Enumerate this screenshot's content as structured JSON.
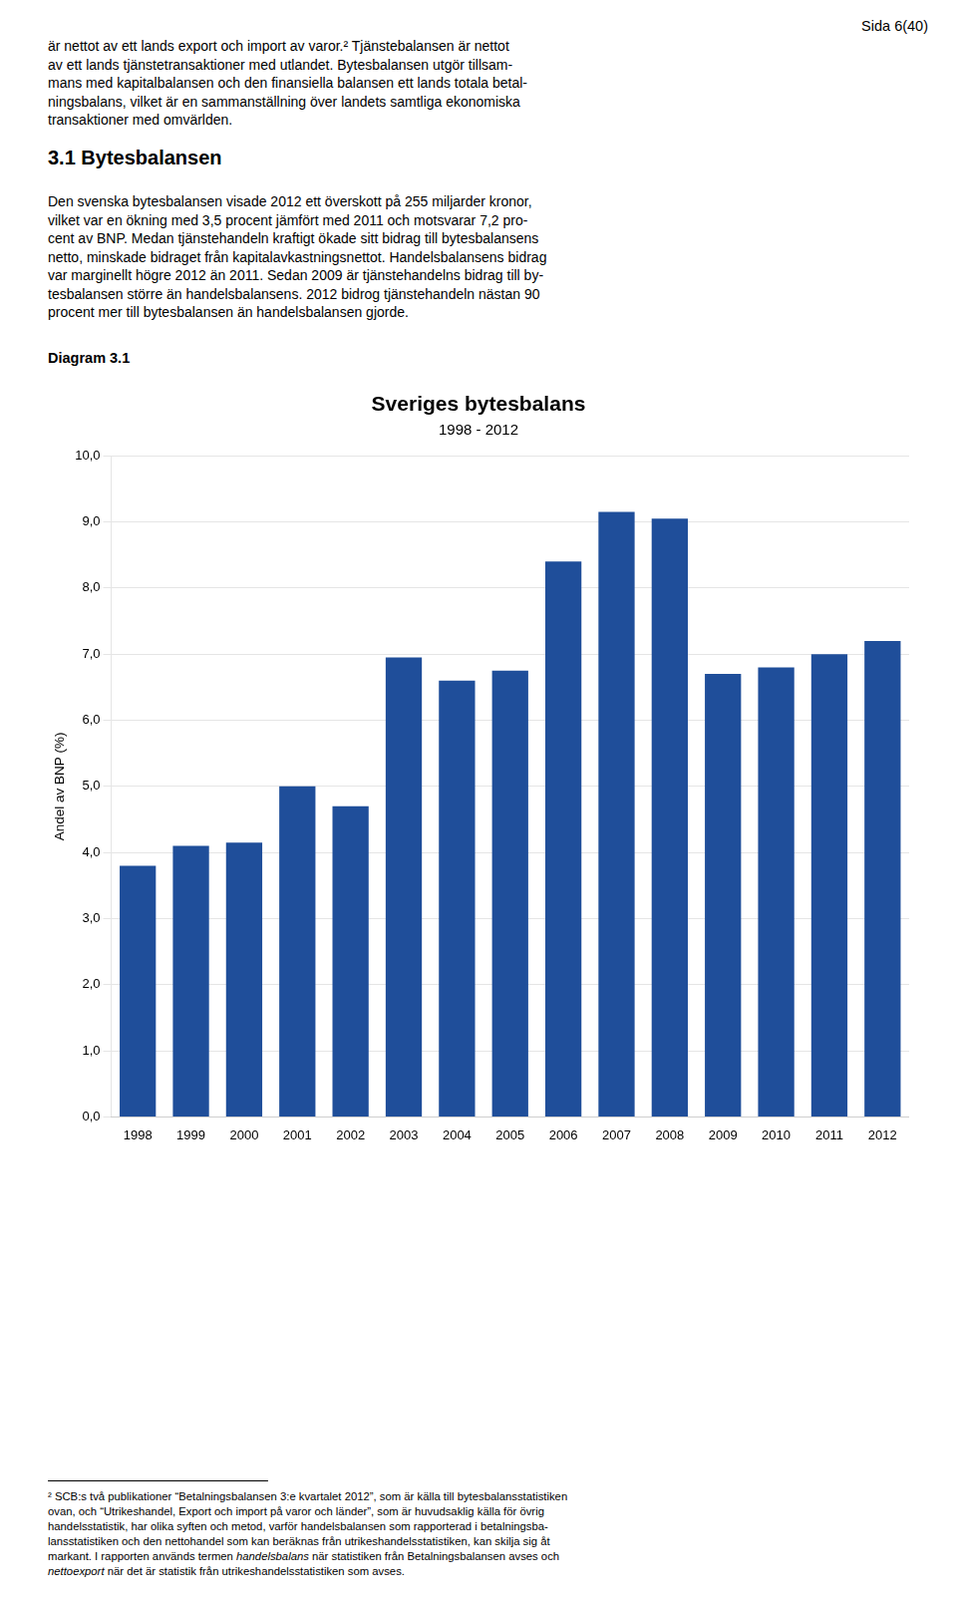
{
  "chart_data": {
    "type": "bar",
    "title": "Sveriges bytesbalans",
    "subtitle": "1998 - 2012",
    "ylabel": "Andel av BNP (%)",
    "categories": [
      "1998",
      "1999",
      "2000",
      "2001",
      "2002",
      "2003",
      "2004",
      "2005",
      "2006",
      "2007",
      "2008",
      "2009",
      "2010",
      "2011",
      "2012"
    ],
    "values": [
      3.8,
      4.1,
      4.15,
      5.0,
      4.7,
      6.95,
      6.6,
      6.75,
      8.4,
      9.15,
      9.05,
      6.7,
      6.8,
      7.0,
      7.2
    ],
    "color": "#1F4E9A",
    "ylim": [
      0,
      10.0
    ],
    "yticks": [
      {
        "value": 0.0,
        "label": "0,0"
      },
      {
        "value": 1.0,
        "label": "1,0"
      },
      {
        "value": 2.0,
        "label": "2,0"
      },
      {
        "value": 3.0,
        "label": "3,0"
      },
      {
        "value": 4.0,
        "label": "4,0"
      },
      {
        "value": 5.0,
        "label": "5,0"
      },
      {
        "value": 6.0,
        "label": "6,0"
      },
      {
        "value": 7.0,
        "label": "7,0"
      },
      {
        "value": 8.0,
        "label": "8,0"
      },
      {
        "value": 9.0,
        "label": "9,0"
      },
      {
        "value": 10.0,
        "label": "10,0"
      }
    ],
    "grid": true
  },
  "page": {
    "page_label": "Sida 6(40)",
    "top_lines": [
      "är nettot av ett lands export och import av varor.² Tjänstebalansen är nettot",
      "av ett lands tjänstetransaktioner med utlandet. Bytesbalansen utgör tillsam-",
      "mans med kapitalbalansen och den finansiella balansen ett lands totala betal-",
      "ningsbalans, vilket är en sammanställning över landets samtliga ekonomiska",
      "transaktioner med omvärlden."
    ],
    "section_title": "3.1 Bytesbalansen",
    "body_lines": [
      "Den svenska bytesbalansen visade 2012 ett överskott på 255 miljarder kronor,",
      "vilket var en ökning med 3,5 procent jämfört med 2011 och motsvarar 7,2 pro-",
      "cent av BNP. Medan tjänstehandeln kraftigt ökade sitt bidrag till bytesbalansens",
      "netto, minskade bidraget från kapitalavkastningsnettot. Handelsbalansens bidrag",
      "var marginellt högre 2012 än 2011. Sedan 2009 är tjänstehandelns bidrag till by-",
      "tesbalansen större än handelsbalansens. 2012 bidrog tjänstehandeln nästan 90",
      "procent mer till bytesbalansen än handelsbalansen gjorde."
    ],
    "diagram_label": "Diagram 3.1",
    "footer_lines": [
      "² SCB:s två publikationer “Betalningsbalansen 3:e kvartalet 2012”, som är källa till bytesbalansstatistiken",
      "ovan, och “Utrikeshandel, Export och import på varor och länder”, som är huvudsaklig källa för övrig",
      "handelsstatistik, har olika syften och metod, varför handelsbalansen som rapporterad i betalningsba-",
      "lansstatistiken och den nettohandel som kan beräknas från utrikeshandelsstatistiken, kan skilja sig åt",
      "markant. I rapporten används termen handelsbalans när statistiken från Betalningsbalansen avses och",
      "nettoexport när det är statistik från utrikeshandelsstatistiken som avses."
    ],
    "footer_italic_words": [
      "handelsbalans",
      "nettoexport"
    ]
  }
}
